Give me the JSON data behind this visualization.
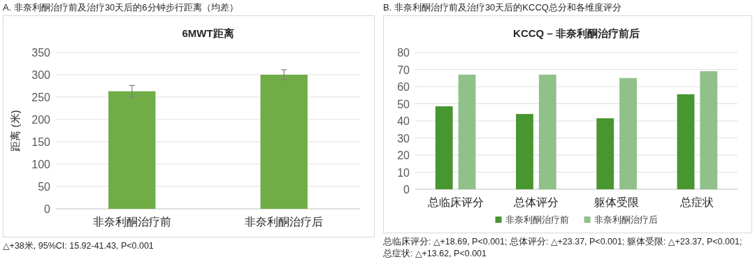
{
  "chart_data": [
    {
      "type": "bar",
      "title": "A. 非奈利酮治疗前及治疗30天后的6分钟步行距离（均差）",
      "subtitle": "6MWT距离",
      "ylabel": "距离 (米)",
      "categories": [
        "非奈利酮治疗前",
        "非奈利酮治疗后"
      ],
      "values": [
        263,
        300
      ],
      "errors": [
        13,
        11
      ],
      "color": "#70ad47",
      "ylim": [
        0,
        350
      ],
      "yticks": [
        0,
        50,
        100,
        150,
        200,
        250,
        300,
        350
      ],
      "grid": "y",
      "annotations": [
        "△+38米, 95%CI: 15.92-41.43, P<0.001"
      ]
    },
    {
      "type": "bar",
      "title": "B. 非奈利酮治疗前及治疗30天后的KCCQ总分和各维度评分",
      "subtitle": "KCCQ – 非奈利酮治疗前后",
      "categories": [
        "总临床评分",
        "总体评分",
        "躯体受限",
        "总症状"
      ],
      "series": [
        {
          "name": "非奈利酮治疗前",
          "color": "#47962f",
          "values": [
            48.5,
            44,
            41.5,
            55.5
          ]
        },
        {
          "name": "非奈利酮治疗后",
          "color": "#8fc189",
          "values": [
            67,
            67,
            65,
            69
          ]
        }
      ],
      "ylim": [
        0,
        80
      ],
      "yticks": [
        0,
        10,
        20,
        30,
        40,
        50,
        60,
        70,
        80
      ],
      "grid": "y",
      "legend": "bottom",
      "annotations": [
        "总临床评分: △+18.69, P<0.001; 总体评分: △+23.37, P<0.001; 躯体受限: △+23.37, P<0.001; 总症状: △+13.62, P<0.001"
      ]
    }
  ]
}
